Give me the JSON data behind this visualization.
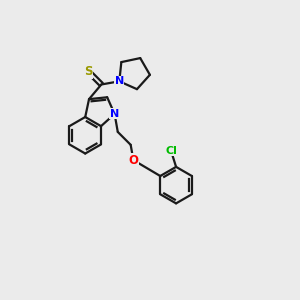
{
  "bg_color": "#ebebeb",
  "bond_color": "#1a1a1a",
  "N_color": "#0000ff",
  "O_color": "#ff0000",
  "S_color": "#999900",
  "Cl_color": "#00bb00",
  "line_width": 1.6,
  "fig_w": 3.0,
  "fig_h": 3.0,
  "dpi": 100,
  "xlim": [
    0,
    10
  ],
  "ylim": [
    0,
    10
  ]
}
